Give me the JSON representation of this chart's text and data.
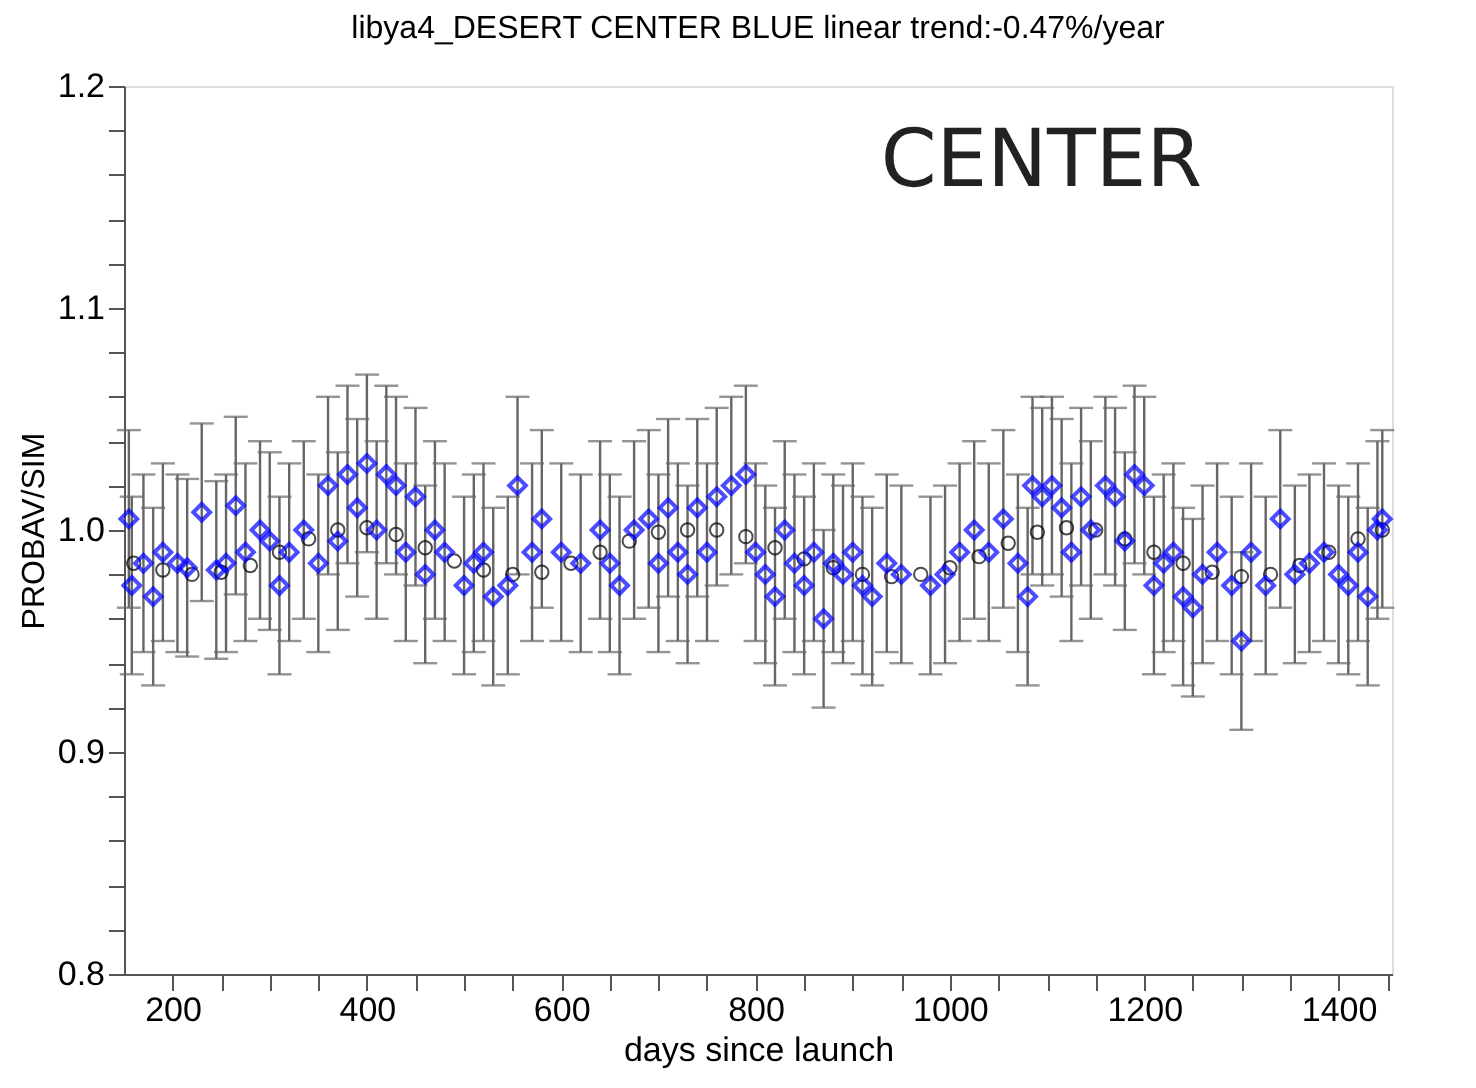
{
  "chart_data": {
    "type": "scatter",
    "title": "libya4_DESERT CENTER BLUE linear trend:-0.47%/year",
    "xlabel": "days since launch",
    "ylabel": "PROBAV/SIM",
    "annotations": [
      "CENTER"
    ],
    "xlim": [
      150,
      1455
    ],
    "ylim": [
      0.8,
      1.2
    ],
    "xticks": [
      200,
      {
        "value": 250,
        "label": null
      },
      {
        "value": 300,
        "label": null
      },
      {
        "value": 350,
        "label": null
      },
      400,
      {
        "value": 450,
        "label": null
      },
      {
        "value": 500,
        "label": null
      },
      {
        "value": 550,
        "label": null
      },
      600,
      {
        "value": 650,
        "label": null
      },
      {
        "value": 700,
        "label": null
      },
      {
        "value": 750,
        "label": null
      },
      800,
      {
        "value": 850,
        "label": null
      },
      {
        "value": 900,
        "label": null
      },
      {
        "value": 950,
        "label": null
      },
      1000,
      {
        "value": 1050,
        "label": null
      },
      {
        "value": 1100,
        "label": null
      },
      {
        "value": 1150,
        "label": null
      },
      1200,
      {
        "value": 1250,
        "label": null
      },
      {
        "value": 1300,
        "label": null
      },
      {
        "value": 1350,
        "label": null
      },
      1400,
      {
        "value": 1450,
        "label": null
      }
    ],
    "yticks": [
      0.8,
      {
        "value": 0.82,
        "label": null
      },
      {
        "value": 0.84,
        "label": null
      },
      {
        "value": 0.86,
        "label": null
      },
      {
        "value": 0.88,
        "label": null
      },
      0.9,
      {
        "value": 0.92,
        "label": null
      },
      {
        "value": 0.94,
        "label": null
      },
      {
        "value": 0.96,
        "label": null
      },
      {
        "value": 0.98,
        "label": null
      },
      {
        "value": 1.0,
        "label": "1.0"
      },
      {
        "value": 1.02,
        "label": null
      },
      {
        "value": 1.04,
        "label": null
      },
      {
        "value": 1.06,
        "label": null
      },
      {
        "value": 1.08,
        "label": null
      },
      1.1,
      {
        "value": 1.12,
        "label": null
      },
      {
        "value": 1.14,
        "label": null
      },
      {
        "value": 1.16,
        "label": null
      },
      {
        "value": 1.18,
        "label": null
      },
      1.2
    ],
    "grid": false,
    "series": [
      {
        "color": "#000000",
        "marker": "circle",
        "x": [
          160,
          190,
          220,
          250,
          280,
          310,
          340,
          370,
          400,
          430,
          460,
          490,
          520,
          550,
          580,
          610,
          640,
          670,
          700,
          730,
          760,
          790,
          820,
          850,
          880,
          910,
          940,
          970,
          1000,
          1030,
          1060,
          1090,
          1120,
          1150,
          1180,
          1210,
          1240,
          1270,
          1300,
          1330,
          1360,
          1390,
          1420,
          1445
        ],
        "values": [
          0.985,
          0.982,
          0.98,
          0.981,
          0.984,
          0.99,
          0.996,
          1.0,
          1.001,
          0.998,
          0.992,
          0.986,
          0.982,
          0.98,
          0.981,
          0.985,
          0.99,
          0.995,
          0.999,
          1.0,
          1.0,
          0.997,
          0.992,
          0.987,
          0.983,
          0.98,
          0.979,
          0.98,
          0.983,
          0.988,
          0.994,
          0.999,
          1.001,
          1.0,
          0.996,
          0.99,
          0.985,
          0.981,
          0.979,
          0.98,
          0.984,
          0.99,
          0.996,
          1.0
        ]
      },
      {
        "color": "#0000ff",
        "marker": "diamond",
        "x": [
          155,
          158,
          170,
          180,
          190,
          205,
          215,
          230,
          245,
          255,
          265,
          275,
          290,
          300,
          310,
          320,
          335,
          350,
          360,
          370,
          380,
          390,
          400,
          410,
          420,
          430,
          440,
          450,
          460,
          470,
          480,
          500,
          510,
          520,
          530,
          545,
          555,
          570,
          580,
          600,
          620,
          640,
          650,
          660,
          675,
          690,
          700,
          710,
          720,
          730,
          740,
          750,
          760,
          775,
          790,
          800,
          810,
          820,
          830,
          840,
          850,
          860,
          870,
          880,
          890,
          900,
          910,
          920,
          935,
          950,
          980,
          995,
          1010,
          1025,
          1040,
          1055,
          1070,
          1080,
          1085,
          1095,
          1105,
          1115,
          1125,
          1135,
          1145,
          1160,
          1170,
          1180,
          1190,
          1200,
          1210,
          1220,
          1230,
          1240,
          1250,
          1260,
          1275,
          1290,
          1300,
          1310,
          1325,
          1340,
          1355,
          1370,
          1385,
          1400,
          1410,
          1420,
          1430,
          1440,
          1445
        ],
        "values": [
          1.005,
          0.975,
          0.985,
          0.97,
          0.99,
          0.985,
          0.983,
          1.008,
          0.982,
          0.985,
          1.011,
          0.99,
          1.0,
          0.995,
          0.975,
          0.99,
          1.0,
          0.985,
          1.02,
          0.995,
          1.025,
          1.01,
          1.03,
          1.0,
          1.025,
          1.02,
          0.99,
          1.015,
          0.98,
          1.0,
          0.99,
          0.975,
          0.985,
          0.99,
          0.97,
          0.975,
          1.02,
          0.99,
          1.005,
          0.99,
          0.985,
          1.0,
          0.985,
          0.975,
          1.0,
          1.005,
          0.985,
          1.01,
          0.99,
          0.98,
          1.01,
          0.99,
          1.015,
          1.02,
          1.025,
          0.99,
          0.98,
          0.97,
          1.0,
          0.985,
          0.975,
          0.99,
          0.96,
          0.985,
          0.98,
          0.99,
          0.975,
          0.97,
          0.985,
          0.98,
          0.975,
          0.98,
          0.99,
          1.0,
          0.99,
          1.005,
          0.985,
          0.97,
          1.02,
          1.015,
          1.02,
          1.01,
          0.99,
          1.015,
          1.0,
          1.02,
          1.015,
          0.995,
          1.025,
          1.02,
          0.975,
          0.985,
          0.99,
          0.97,
          0.965,
          0.98,
          0.99,
          0.975,
          0.95,
          0.99,
          0.975,
          1.005,
          0.98,
          0.985,
          0.99,
          0.98,
          0.975,
          0.99,
          0.97,
          1.0,
          1.005
        ],
        "errors": [
          0.04,
          0.04,
          0.04,
          0.04,
          0.04,
          0.04,
          0.04,
          0.04,
          0.04,
          0.04,
          0.04,
          0.04,
          0.04,
          0.04,
          0.04,
          0.04,
          0.04,
          0.04,
          0.04,
          0.04,
          0.04,
          0.04,
          0.04,
          0.04,
          0.04,
          0.04,
          0.04,
          0.04,
          0.04,
          0.04,
          0.04,
          0.04,
          0.04,
          0.04,
          0.04,
          0.04,
          0.04,
          0.04,
          0.04,
          0.04,
          0.04,
          0.04,
          0.04,
          0.04,
          0.04,
          0.04,
          0.04,
          0.04,
          0.04,
          0.04,
          0.04,
          0.04,
          0.04,
          0.04,
          0.04,
          0.04,
          0.04,
          0.04,
          0.04,
          0.04,
          0.04,
          0.04,
          0.04,
          0.04,
          0.04,
          0.04,
          0.04,
          0.04,
          0.04,
          0.04,
          0.04,
          0.04,
          0.04,
          0.04,
          0.04,
          0.04,
          0.04,
          0.04,
          0.04,
          0.04,
          0.04,
          0.04,
          0.04,
          0.04,
          0.04,
          0.04,
          0.04,
          0.04,
          0.04,
          0.04,
          0.04,
          0.04,
          0.04,
          0.04,
          0.04,
          0.04,
          0.04,
          0.04,
          0.04,
          0.04,
          0.04,
          0.04,
          0.04,
          0.04,
          0.04,
          0.04,
          0.04,
          0.04,
          0.04,
          0.04,
          0.04
        ]
      }
    ]
  }
}
